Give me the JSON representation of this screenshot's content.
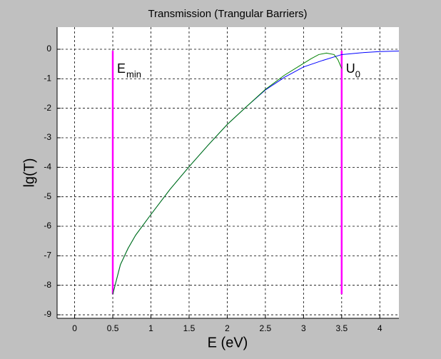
{
  "chart_data": {
    "type": "line",
    "title": "Transmission (Trangular  Barriers)",
    "xlabel": "E (eV)",
    "ylabel": "lg(T)",
    "xlim": [
      -0.23,
      4.25
    ],
    "ylim": [
      -9.12,
      0.75
    ],
    "xticks": [
      0,
      0.5,
      1,
      1.5,
      2,
      2.5,
      3,
      3.5,
      4
    ],
    "yticks": [
      0,
      -1,
      -2,
      -3,
      -4,
      -5,
      -6,
      -7,
      -8,
      -9
    ],
    "grid": true,
    "series": [
      {
        "color": "#0000ff",
        "x": [
          0.5,
          0.6,
          0.7,
          0.8,
          1,
          1.25,
          1.5,
          1.75,
          2,
          2.25,
          2.5,
          2.75,
          3,
          3.25,
          3.5,
          3.75,
          4,
          4.25
        ],
        "values": [
          -8.3,
          -7.3,
          -6.75,
          -6.3,
          -5.6,
          -4.75,
          -3.98,
          -3.25,
          -2.55,
          -1.95,
          -1.38,
          -0.95,
          -0.6,
          -0.38,
          -0.18,
          -0.12,
          -0.08,
          -0.06
        ]
      },
      {
        "color": "#008000",
        "x": [
          0.5,
          0.6,
          0.7,
          0.8,
          1,
          1.25,
          1.5,
          1.75,
          2,
          2.25,
          2.5,
          2.75,
          3,
          3.1,
          3.2,
          3.3,
          3.4,
          3.45,
          3.5
        ],
        "values": [
          -8.3,
          -7.3,
          -6.75,
          -6.3,
          -5.6,
          -4.75,
          -3.98,
          -3.25,
          -2.55,
          -1.95,
          -1.36,
          -0.88,
          -0.48,
          -0.32,
          -0.18,
          -0.13,
          -0.18,
          -0.35,
          -0.65
        ]
      }
    ],
    "vlines": [
      {
        "x": 0.5,
        "ymin": -8.3,
        "ymax": -0.05,
        "color": "#ff00ff",
        "label": "E",
        "sub": "min"
      },
      {
        "x": 3.5,
        "ymin": -8.3,
        "ymax": -0.05,
        "color": "#ff00ff",
        "label": "U",
        "sub": "0"
      }
    ]
  }
}
